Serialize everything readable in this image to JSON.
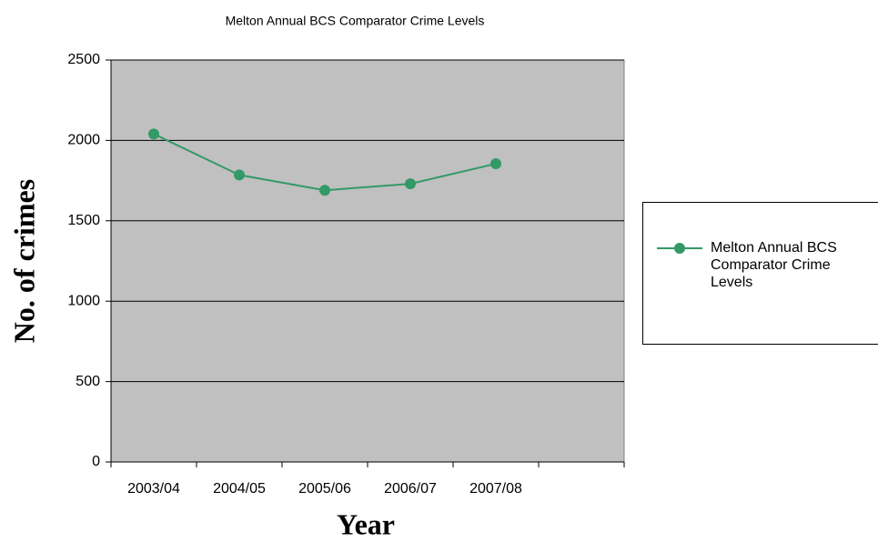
{
  "chart_data": {
    "type": "line",
    "title": "Melton Annual BCS Comparator Crime Levels",
    "x_label": "Year",
    "y_label": "No. of crimes",
    "categories": [
      "2003/04",
      "2004/05",
      "2005/06",
      "2006/07",
      "2007/08",
      null
    ],
    "series": [
      {
        "name": "Melton Annual BCS Comparator Crime Levels",
        "color": "#339966",
        "values": [
          2040,
          1785,
          1690,
          1730,
          1855,
          null
        ]
      }
    ],
    "ylim": [
      0,
      2500
    ],
    "yticks": [
      0,
      500,
      1000,
      1500,
      2000,
      2500
    ],
    "grid": true,
    "legend": "right",
    "plot_background": "#c0c0c0"
  }
}
